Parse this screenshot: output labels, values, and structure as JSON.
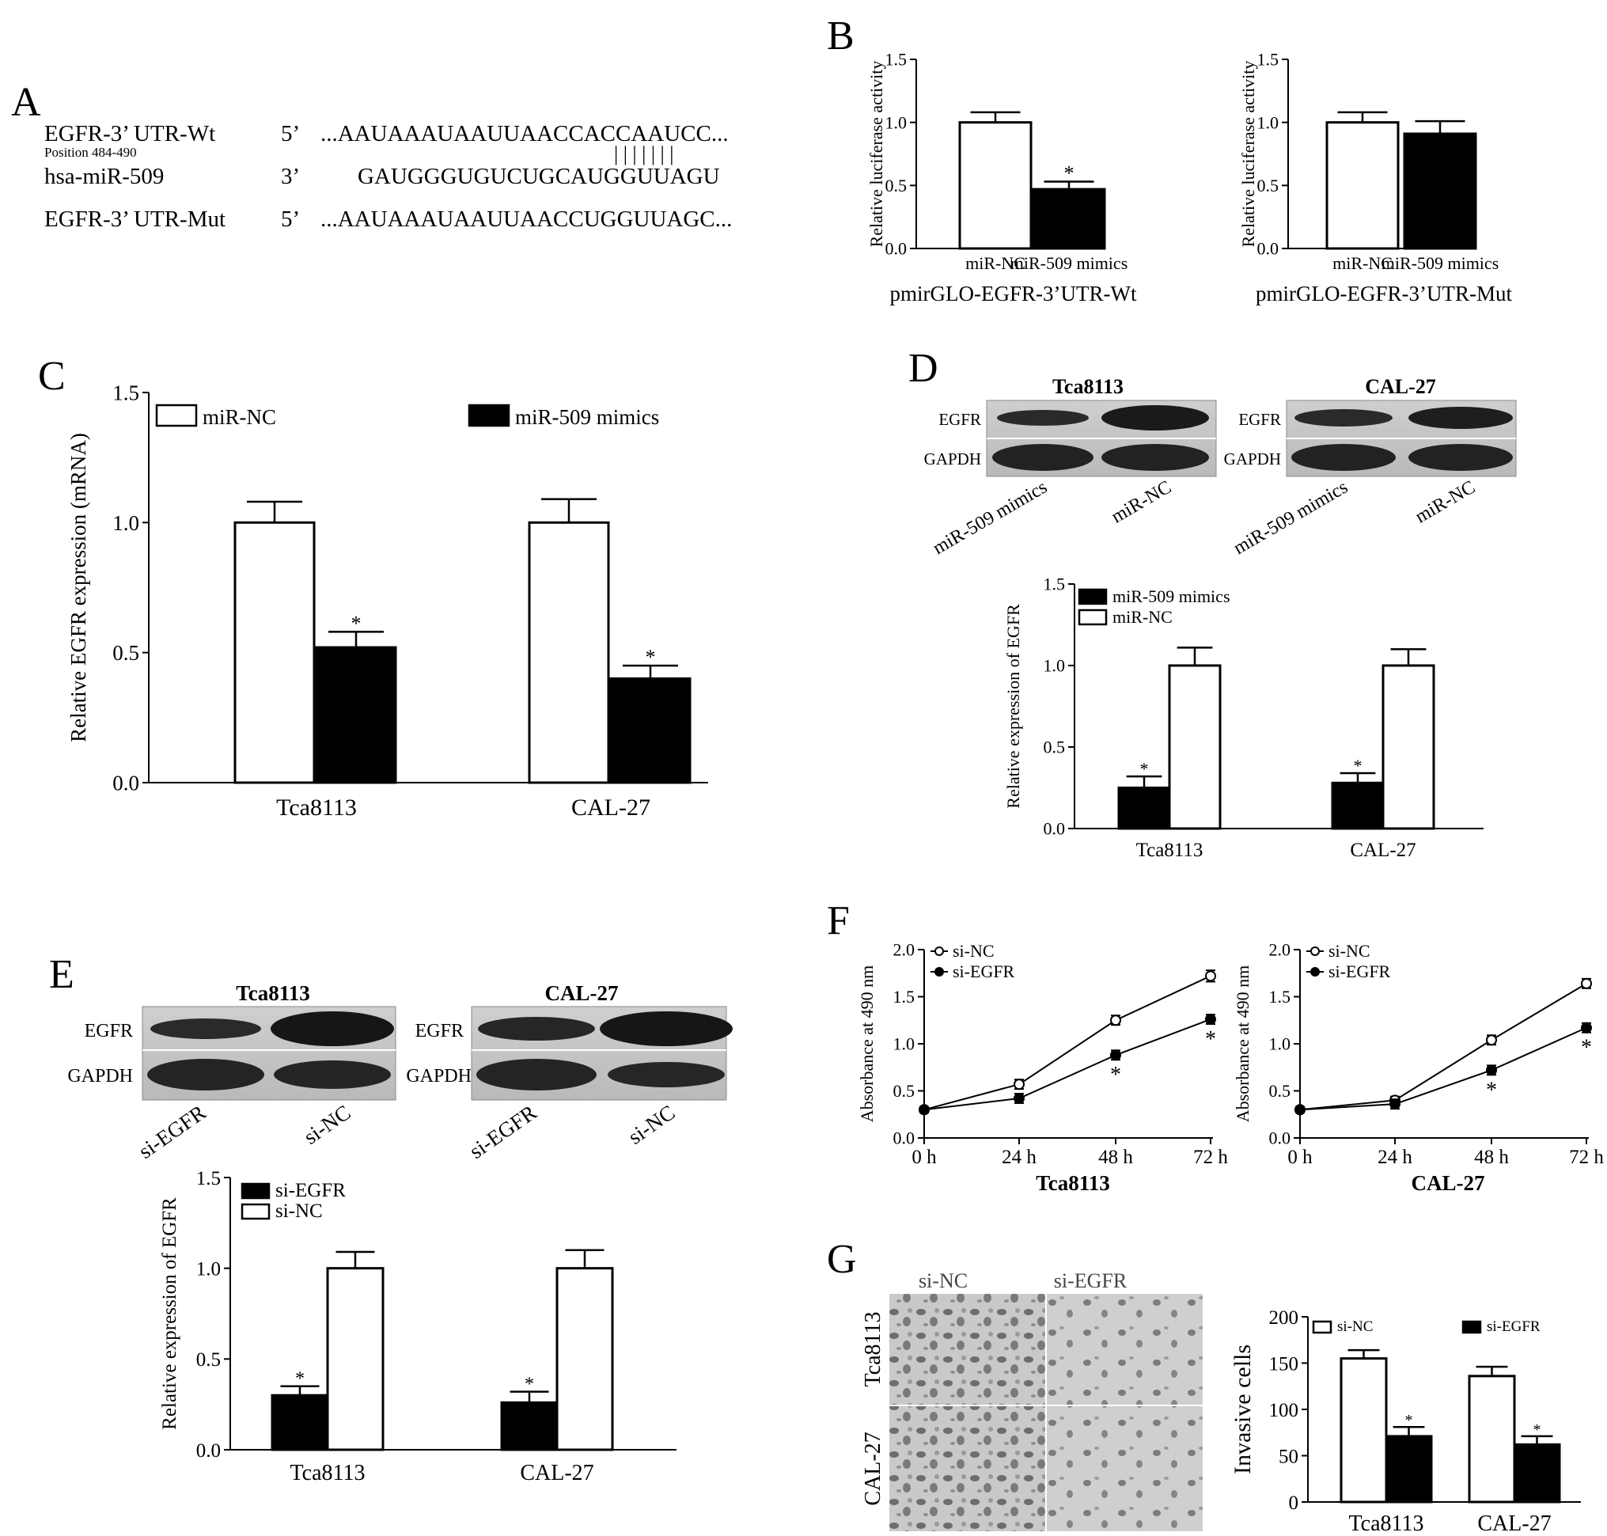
{
  "panel_letters": {
    "a": "A",
    "b": "B",
    "c": "C",
    "d": "D",
    "e": "E",
    "f": "F",
    "g": "G"
  },
  "sequence_panel": {
    "rows": [
      {
        "label": "EGFR-3’ UTR-Wt",
        "end": "5’",
        "sequence": "...AAUAAAUAAUUAACCACCAAUCC..."
      },
      {
        "label": "hsa-miR-509",
        "end": "3’",
        "sequence": "GAUGGGUGUCUGCAUGGUUAGU"
      },
      {
        "label": "EGFR-3’ UTR-Mut",
        "end": "5’",
        "sequence": "...AAUAAAUAAUUAACCUGGUUAGC..."
      }
    ],
    "position_note": "Position 484-490",
    "pairing_marks": "| | | | | | |"
  },
  "blots": [
    {
      "id": "D-Tca8113",
      "title": "Tca8113",
      "row_labels": [
        "EGFR",
        "GAPDH"
      ],
      "lane_labels": [
        "miR-509 mimics",
        "miR-NC"
      ]
    },
    {
      "id": "D-CAL-27",
      "title": "CAL-27",
      "row_labels": [
        "EGFR",
        "GAPDH"
      ],
      "lane_labels": [
        "miR-509 mimics",
        "miR-NC"
      ]
    },
    {
      "id": "E-Tca8113",
      "title": "Tca8113",
      "row_labels": [
        "EGFR",
        "GAPDH"
      ],
      "lane_labels": [
        "si-EGFR",
        "si-NC"
      ]
    },
    {
      "id": "E-CAL-27",
      "title": "CAL-27",
      "row_labels": [
        "EGFR",
        "GAPDH"
      ],
      "lane_labels": [
        "si-EGFR",
        "si-NC"
      ]
    }
  ],
  "micrographs": {
    "column_labels": [
      "si-NC",
      "si-EGFR"
    ],
    "row_labels": [
      "Tca8113",
      "CAL-27"
    ]
  },
  "chart_data": [
    {
      "id": "B1",
      "type": "bar",
      "ylabel": "Relative luciferase activity",
      "xlabel": "pmirGLO-EGFR-3’UTR-Wt",
      "ylim": [
        0,
        1.5
      ],
      "yticks": [
        "0.0",
        "0.5",
        "1.0",
        "1.5"
      ],
      "categories": [
        "miR-NC",
        "miR-509 mimics"
      ],
      "values": [
        1.0,
        0.47
      ],
      "errors": [
        0.08,
        0.06
      ],
      "fills": [
        "#ffffff",
        "#000000"
      ],
      "marks": [
        "",
        "*"
      ]
    },
    {
      "id": "B2",
      "type": "bar",
      "ylabel": "Relative luciferase activity",
      "xlabel": "pmirGLO-EGFR-3’UTR-Mut",
      "ylim": [
        0,
        1.5
      ],
      "yticks": [
        "0.0",
        "0.5",
        "1.0",
        "1.5"
      ],
      "categories": [
        "miR-NC",
        "miR-509 mimics"
      ],
      "values": [
        1.0,
        0.91
      ],
      "errors": [
        0.08,
        0.1
      ],
      "fills": [
        "#ffffff",
        "#000000"
      ],
      "marks": [
        "",
        ""
      ]
    },
    {
      "id": "C",
      "type": "bar",
      "ylabel": "Relative EGFR expression (mRNA)",
      "ylim": [
        0,
        1.5
      ],
      "yticks": [
        "0.0",
        "0.5",
        "1.0",
        "1.5"
      ],
      "categories": [
        "Tca8113",
        "CAL-27"
      ],
      "series": [
        {
          "name": "miR-NC",
          "fill": "#ffffff",
          "values": [
            1.0,
            1.0
          ],
          "errors": [
            0.08,
            0.09
          ],
          "marks": [
            "",
            ""
          ]
        },
        {
          "name": "miR-509 mimics",
          "fill": "#000000",
          "values": [
            0.52,
            0.4
          ],
          "errors": [
            0.06,
            0.05
          ],
          "marks": [
            "*",
            "*"
          ]
        }
      ],
      "legend": "top"
    },
    {
      "id": "D",
      "type": "bar",
      "ylabel": "Relative expression of EGFR",
      "ylim": [
        0,
        1.5
      ],
      "yticks": [
        "0.0",
        "0.5",
        "1.0",
        "1.5"
      ],
      "categories": [
        "Tca8113",
        "CAL-27"
      ],
      "series": [
        {
          "name": "miR-509 mimics",
          "fill": "#000000",
          "values": [
            0.25,
            0.28
          ],
          "errors": [
            0.07,
            0.06
          ],
          "marks": [
            "*",
            "*"
          ]
        },
        {
          "name": "miR-NC",
          "fill": "#ffffff",
          "values": [
            1.0,
            1.0
          ],
          "errors": [
            0.11,
            0.1
          ],
          "marks": [
            "",
            ""
          ]
        }
      ],
      "legend": "top-left"
    },
    {
      "id": "E",
      "type": "bar",
      "ylabel": "Relative expression of EGFR",
      "ylim": [
        0,
        1.5
      ],
      "yticks": [
        "0.0",
        "0.5",
        "1.0",
        "1.5"
      ],
      "categories": [
        "Tca8113",
        "CAL-27"
      ],
      "series": [
        {
          "name": "si-EGFR",
          "fill": "#000000",
          "values": [
            0.3,
            0.26
          ],
          "errors": [
            0.05,
            0.06
          ],
          "marks": [
            "*",
            "*"
          ]
        },
        {
          "name": "si-NC",
          "fill": "#ffffff",
          "values": [
            1.0,
            1.0
          ],
          "errors": [
            0.09,
            0.1
          ],
          "marks": [
            "",
            ""
          ]
        }
      ],
      "legend": "top-left"
    },
    {
      "id": "F1",
      "type": "line",
      "title": "Tca8113",
      "ylabel": "Absorbance at 490 nm",
      "ylim": [
        0,
        2.0
      ],
      "yticks": [
        "0.0",
        "0.5",
        "1.0",
        "1.5",
        "2.0"
      ],
      "x": [
        "0 h",
        "24 h",
        "48 h",
        "72 h"
      ],
      "series": [
        {
          "name": "si-NC",
          "marker": "open",
          "values": [
            0.3,
            0.57,
            1.25,
            1.72
          ],
          "errors": [
            0.03,
            0.05,
            0.05,
            0.06
          ],
          "marks": [
            "",
            "",
            "",
            ""
          ]
        },
        {
          "name": "si-EGFR",
          "marker": "filled",
          "values": [
            0.3,
            0.42,
            0.88,
            1.26
          ],
          "errors": [
            0.03,
            0.05,
            0.05,
            0.05
          ],
          "marks": [
            "",
            "",
            "*",
            "*"
          ]
        }
      ],
      "legend": "top-left"
    },
    {
      "id": "F2",
      "type": "line",
      "title": "CAL-27",
      "ylabel": "Absorbance at 490 nm",
      "ylim": [
        0,
        2.0
      ],
      "yticks": [
        "0.0",
        "0.5",
        "1.0",
        "1.5",
        "2.0"
      ],
      "x": [
        "0 h",
        "24 h",
        "48 h",
        "72 h"
      ],
      "series": [
        {
          "name": "si-NC",
          "marker": "open",
          "values": [
            0.3,
            0.4,
            1.04,
            1.64
          ],
          "errors": [
            0.03,
            0.04,
            0.05,
            0.05
          ],
          "marks": [
            "",
            "",
            "",
            ""
          ]
        },
        {
          "name": "si-EGFR",
          "marker": "filled",
          "values": [
            0.3,
            0.36,
            0.72,
            1.17
          ],
          "errors": [
            0.03,
            0.05,
            0.05,
            0.05
          ],
          "marks": [
            "",
            "",
            "*",
            "*"
          ]
        }
      ],
      "legend": "top-left"
    },
    {
      "id": "G",
      "type": "bar",
      "ylabel": "Invasive cells",
      "ylim": [
        0,
        200
      ],
      "yticks": [
        "0",
        "50",
        "100",
        "150",
        "200"
      ],
      "categories": [
        "Tca8113",
        "CAL-27"
      ],
      "series": [
        {
          "name": "si-NC",
          "fill": "#ffffff",
          "values": [
            155,
            136
          ],
          "errors": [
            9,
            10
          ],
          "marks": [
            "",
            ""
          ]
        },
        {
          "name": "si-EGFR",
          "fill": "#000000",
          "values": [
            71,
            62
          ],
          "errors": [
            10,
            9
          ],
          "marks": [
            "*",
            "*"
          ]
        }
      ],
      "legend": "top"
    }
  ]
}
